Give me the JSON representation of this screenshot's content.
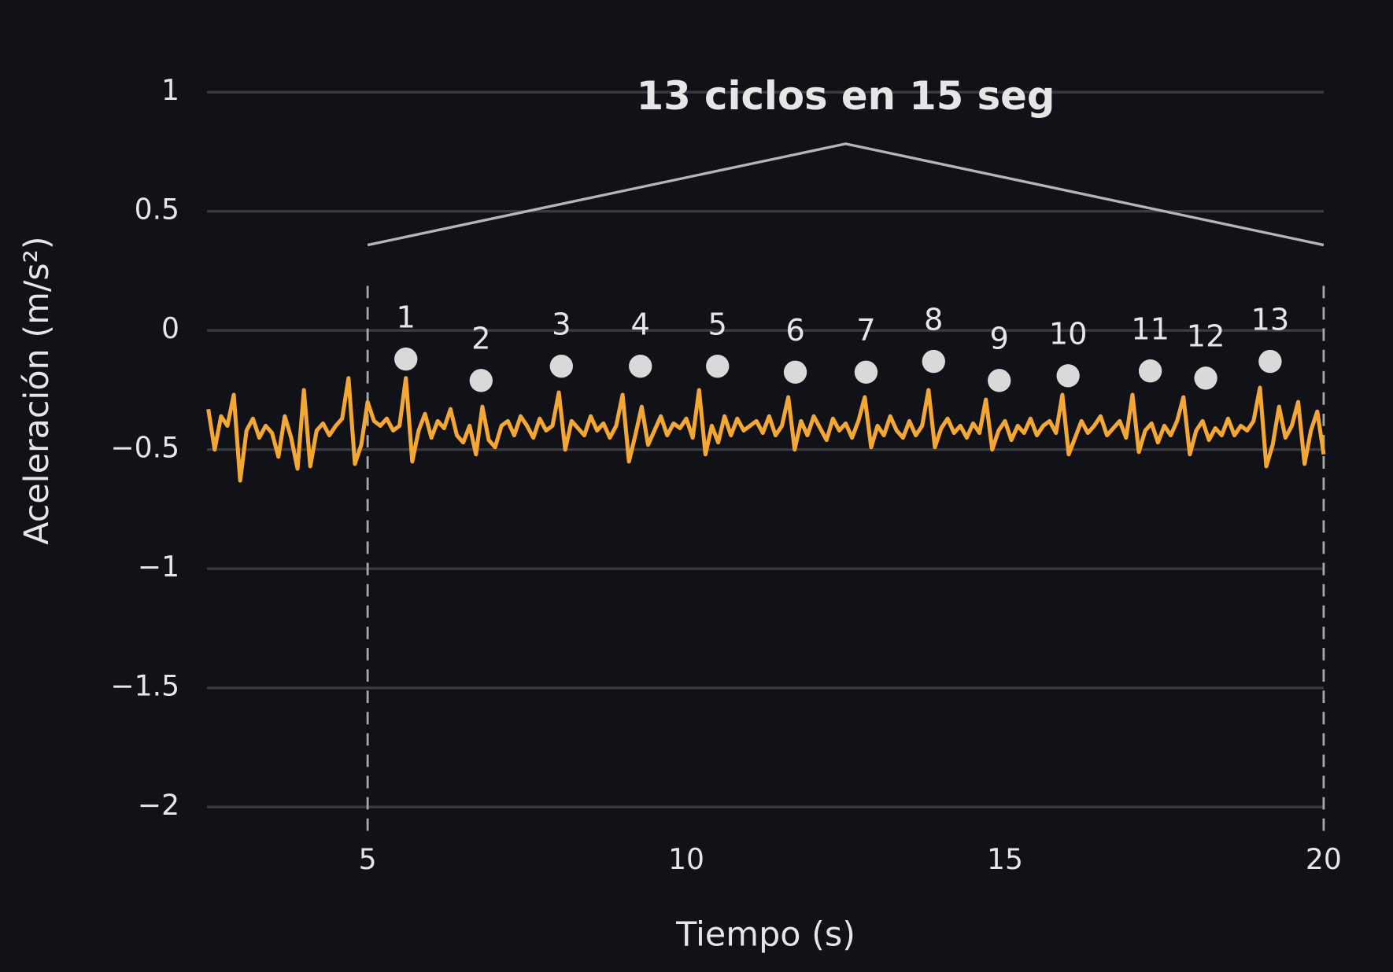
{
  "chart_data": {
    "type": "line",
    "xlabel": "Tiempo (s)",
    "ylabel": "Aceleración (m/s²)",
    "color": "#f5a733",
    "grid": true,
    "xlim": [
      2.48,
      20
    ],
    "ylim": [
      -2.1,
      1.1
    ],
    "xticks": [
      5,
      10,
      15,
      20
    ],
    "yticks": [
      {
        "value": -2,
        "label": "−2"
      },
      {
        "value": -1.5,
        "label": "−1.5"
      },
      {
        "value": -1,
        "label": "−1"
      },
      {
        "value": -0.5,
        "label": "−0.5"
      },
      0,
      0.5,
      1
    ],
    "x": [
      2.5,
      2.6,
      2.7,
      2.8,
      2.9,
      3.0,
      3.1,
      3.2,
      3.3,
      3.4,
      3.5,
      3.6,
      3.7,
      3.8,
      3.9,
      4.0,
      4.1,
      4.2,
      4.3,
      4.4,
      4.5,
      4.6,
      4.7,
      4.8,
      4.9,
      5.0,
      5.1,
      5.2,
      5.3,
      5.4,
      5.5,
      5.6,
      5.7,
      5.8,
      5.9,
      6.0,
      6.1,
      6.2,
      6.3,
      6.4,
      6.5,
      6.6,
      6.7,
      6.8,
      6.9,
      7.0,
      7.1,
      7.2,
      7.3,
      7.4,
      7.5,
      7.6,
      7.7,
      7.8,
      7.9,
      8.0,
      8.1,
      8.2,
      8.3,
      8.4,
      8.5,
      8.6,
      8.7,
      8.8,
      8.9,
      9.0,
      9.1,
      9.2,
      9.3,
      9.4,
      9.5,
      9.6,
      9.7,
      9.8,
      9.9,
      10.0,
      10.1,
      10.2,
      10.3,
      10.4,
      10.5,
      10.6,
      10.7,
      10.8,
      10.9,
      11.0,
      11.1,
      11.2,
      11.3,
      11.4,
      11.5,
      11.6,
      11.7,
      11.8,
      11.9,
      12.0,
      12.1,
      12.2,
      12.3,
      12.4,
      12.5,
      12.6,
      12.7,
      12.8,
      12.9,
      13.0,
      13.1,
      13.2,
      13.3,
      13.4,
      13.5,
      13.6,
      13.7,
      13.8,
      13.9,
      14.0,
      14.1,
      14.2,
      14.3,
      14.4,
      14.5,
      14.6,
      14.7,
      14.8,
      14.9,
      15.0,
      15.1,
      15.2,
      15.3,
      15.4,
      15.5,
      15.6,
      15.7,
      15.8,
      15.9,
      16.0,
      16.1,
      16.2,
      16.3,
      16.4,
      16.5,
      16.6,
      16.7,
      16.8,
      16.9,
      17.0,
      17.1,
      17.2,
      17.3,
      17.4,
      17.5,
      17.6,
      17.7,
      17.8,
      17.9,
      18.0,
      18.1,
      18.2,
      18.3,
      18.4,
      18.5,
      18.6,
      18.7,
      18.8,
      18.9,
      19.0,
      19.1,
      19.2,
      19.3,
      19.4,
      19.5,
      19.6,
      19.7,
      19.8,
      19.9,
      20.0
    ],
    "values": [
      -0.33,
      -0.5,
      -0.36,
      -0.4,
      -0.27,
      -0.63,
      -0.42,
      -0.37,
      -0.45,
      -0.4,
      -0.43,
      -0.53,
      -0.36,
      -0.45,
      -0.58,
      -0.25,
      -0.57,
      -0.42,
      -0.39,
      -0.44,
      -0.4,
      -0.37,
      -0.2,
      -0.56,
      -0.48,
      -0.3,
      -0.38,
      -0.4,
      -0.37,
      -0.42,
      -0.4,
      -0.2,
      -0.55,
      -0.42,
      -0.35,
      -0.45,
      -0.38,
      -0.41,
      -0.33,
      -0.44,
      -0.47,
      -0.4,
      -0.52,
      -0.32,
      -0.46,
      -0.49,
      -0.4,
      -0.38,
      -0.44,
      -0.36,
      -0.4,
      -0.45,
      -0.37,
      -0.42,
      -0.4,
      -0.26,
      -0.5,
      -0.38,
      -0.41,
      -0.44,
      -0.36,
      -0.42,
      -0.39,
      -0.45,
      -0.4,
      -0.27,
      -0.55,
      -0.44,
      -0.32,
      -0.48,
      -0.42,
      -0.36,
      -0.44,
      -0.39,
      -0.41,
      -0.37,
      -0.45,
      -0.25,
      -0.52,
      -0.4,
      -0.47,
      -0.36,
      -0.44,
      -0.37,
      -0.42,
      -0.4,
      -0.38,
      -0.43,
      -0.36,
      -0.44,
      -0.4,
      -0.28,
      -0.5,
      -0.38,
      -0.44,
      -0.36,
      -0.41,
      -0.46,
      -0.37,
      -0.42,
      -0.39,
      -0.45,
      -0.38,
      -0.28,
      -0.49,
      -0.4,
      -0.44,
      -0.36,
      -0.42,
      -0.45,
      -0.38,
      -0.44,
      -0.4,
      -0.25,
      -0.49,
      -0.41,
      -0.37,
      -0.43,
      -0.4,
      -0.45,
      -0.39,
      -0.43,
      -0.29,
      -0.5,
      -0.42,
      -0.38,
      -0.46,
      -0.4,
      -0.43,
      -0.37,
      -0.44,
      -0.4,
      -0.38,
      -0.43,
      -0.27,
      -0.52,
      -0.45,
      -0.38,
      -0.43,
      -0.4,
      -0.36,
      -0.44,
      -0.41,
      -0.38,
      -0.45,
      -0.27,
      -0.51,
      -0.42,
      -0.39,
      -0.47,
      -0.4,
      -0.44,
      -0.38,
      -0.28,
      -0.52,
      -0.42,
      -0.38,
      -0.46,
      -0.41,
      -0.44,
      -0.37,
      -0.44,
      -0.4,
      -0.42,
      -0.38,
      -0.24,
      -0.57,
      -0.48,
      -0.32,
      -0.45,
      -0.4,
      -0.3,
      -0.56,
      -0.42,
      -0.34,
      -0.52
    ],
    "peaks": {
      "color": "#d9d9d9",
      "labels": [
        "1",
        "2",
        "3",
        "4",
        "5",
        "6",
        "7",
        "8",
        "9",
        "10",
        "11",
        "12",
        "13"
      ],
      "x": [
        5.6,
        6.78,
        8.04,
        9.28,
        10.49,
        11.71,
        12.82,
        13.88,
        14.91,
        15.99,
        17.28,
        18.15,
        19.16
      ],
      "values": [
        -0.12,
        -0.21,
        -0.15,
        -0.15,
        -0.15,
        -0.175,
        -0.175,
        -0.13,
        -0.21,
        -0.19,
        -0.17,
        -0.2,
        -0.13
      ]
    },
    "annotation": {
      "text": "13 ciclos en 15 seg",
      "x": [
        5,
        20
      ]
    }
  }
}
